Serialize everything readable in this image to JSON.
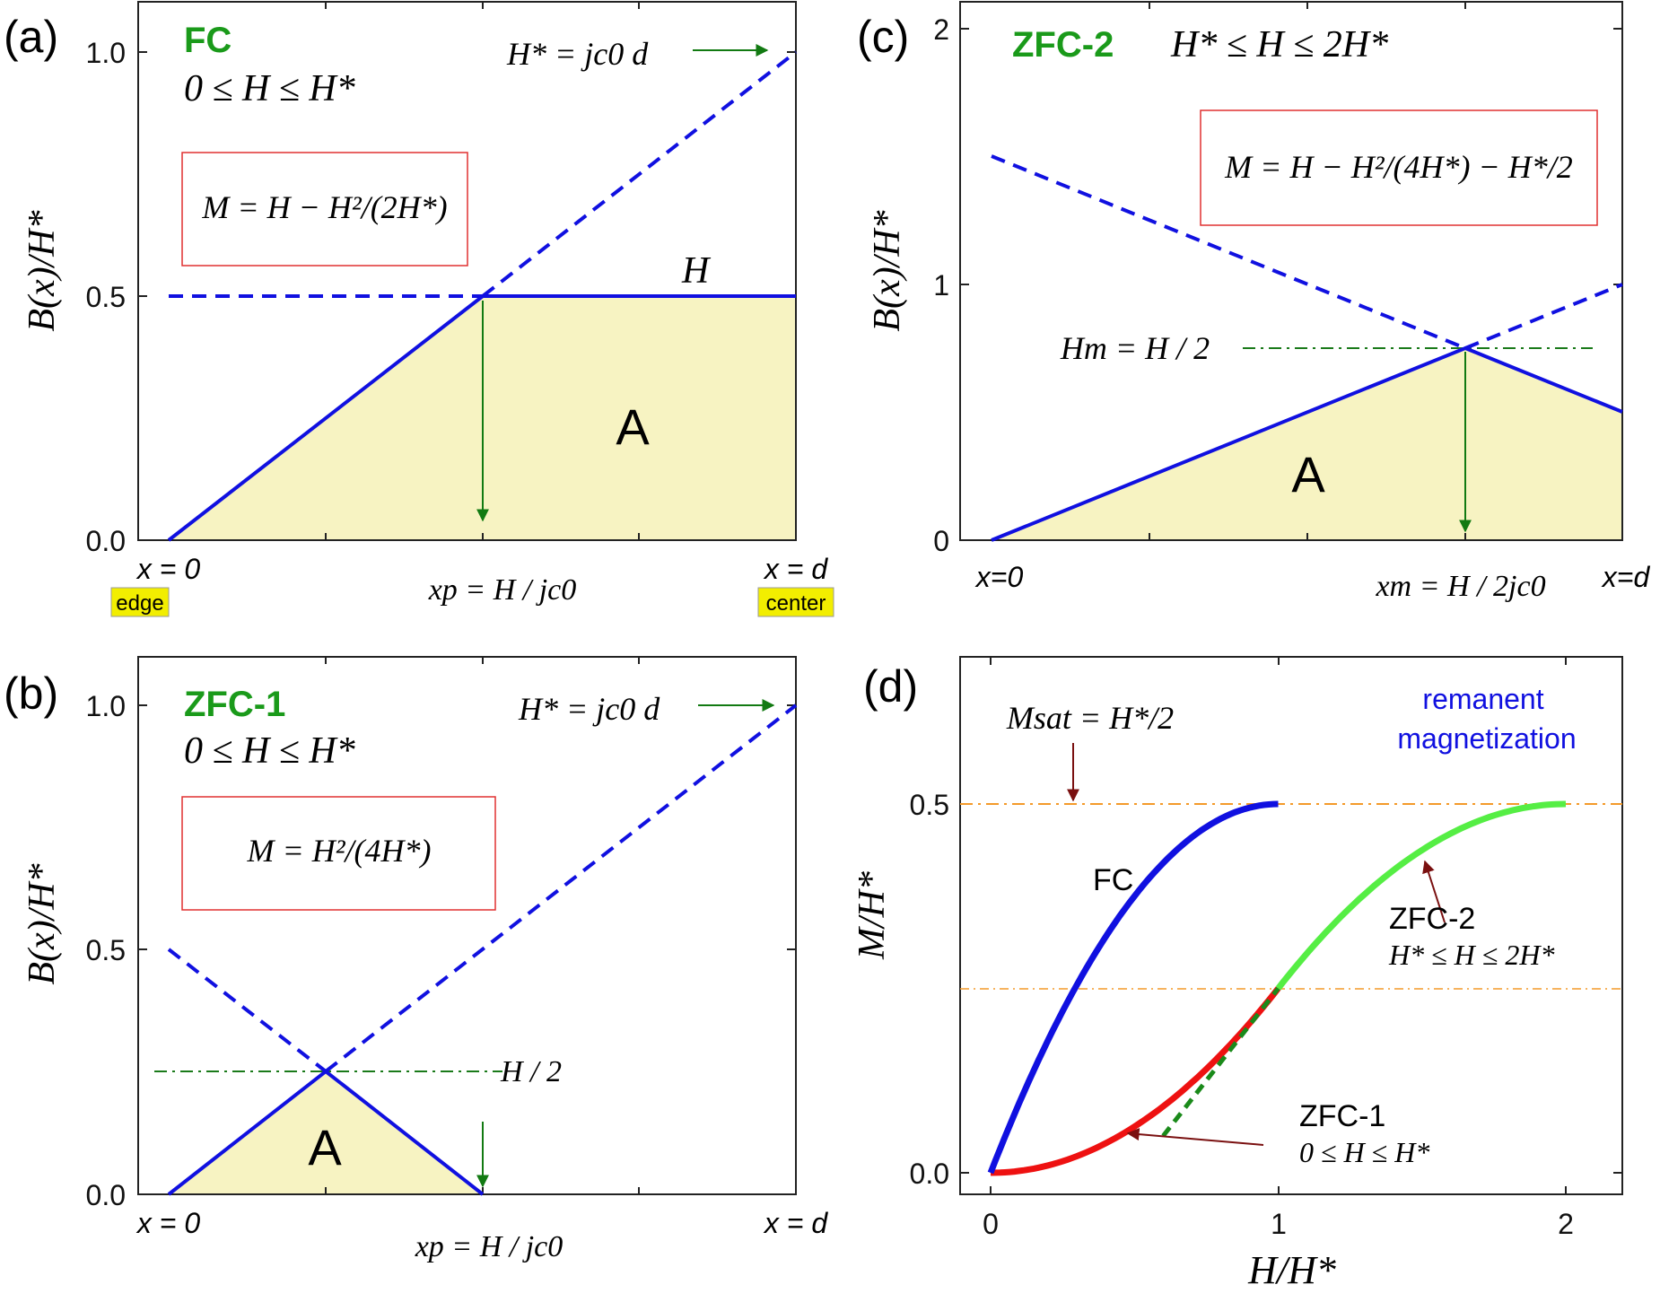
{
  "panels": {
    "a": {
      "label": "(a)",
      "title": "FC",
      "range_label": "0 ≤ H ≤ H*",
      "formula": "M = H − H²/(2H*)",
      "hstar_label": "H* = jc0 d",
      "h_label": "H",
      "area_label": "A",
      "xp_label": "xp = H / jc0",
      "x0_label": "x = 0",
      "xd_label": "x = d",
      "edge_badge": "edge",
      "center_badge": "center",
      "ylabel": "B(x)/H*",
      "yticks": [
        "0.0",
        "0.5",
        "1.0"
      ]
    },
    "b": {
      "label": "(b)",
      "title": "ZFC-1",
      "range_label": "0 ≤ H ≤ H*",
      "formula": "M = H²/(4H*)",
      "hstar_label": "H* = jc0 d",
      "hhalf_label": "H / 2",
      "area_label": "A",
      "xp_label": "xp = H / jc0",
      "x0_label": "x = 0",
      "xd_label": "x = d",
      "ylabel": "B(x)/H*",
      "yticks": [
        "0.0",
        "0.5",
        "1.0"
      ]
    },
    "c": {
      "label": "(c)",
      "title": "ZFC-2",
      "range_label": "H* ≤ H ≤ 2H*",
      "formula": "M = H − H²/(4H*) − H*/2",
      "hm_label": "Hm = H / 2",
      "area_label": "A",
      "xm_label": "xm = H / 2jc0",
      "x0_label": "x=0",
      "xd_label": "x=d",
      "ylabel": "B(x)/H*",
      "yticks": [
        "0",
        "1",
        "2"
      ]
    },
    "d": {
      "label": "(d)",
      "msat_label": "Msat = H*/2",
      "remanent_label_1": "remanent",
      "remanent_label_2": "magnetization",
      "fc_label": "FC",
      "zfc2_label": "ZFC-2",
      "zfc2_range": "H* ≤ H ≤ 2H*",
      "zfc1_label": "ZFC-1",
      "zfc1_range": "0 ≤ H ≤ H*",
      "xlabel": "H/H*",
      "ylabel": "M/H*",
      "xticks": [
        "0",
        "1",
        "2"
      ],
      "yticks": [
        "0.0",
        "0.5"
      ]
    }
  },
  "colors": {
    "blue": "#1010e0",
    "green_text": "#1a9a1a",
    "arrow_green": "#127a12",
    "fill": "#f7f3c2",
    "red": "#ee1111",
    "light_green": "#55ee44",
    "orange": "#f39a2a",
    "dark_red": "#7a1010",
    "box_red": "#e03030",
    "badge": "#f2ee00"
  },
  "chart_data": [
    {
      "type": "line",
      "panel": "a",
      "x_domain": [
        0,
        1
      ],
      "ylim": [
        0,
        1.0
      ],
      "series": [
        {
          "style": "solid",
          "x": [
            0,
            0.5,
            1.0
          ],
          "y": [
            0,
            0.5,
            0.5
          ]
        },
        {
          "style": "dashed",
          "x": [
            0,
            0.5
          ],
          "y": [
            0.5,
            0.5
          ]
        },
        {
          "style": "dashed",
          "x": [
            0.5,
            1.0
          ],
          "y": [
            0.5,
            1.0
          ]
        }
      ]
    },
    {
      "type": "line",
      "panel": "b",
      "x_domain": [
        0,
        1
      ],
      "ylim": [
        0,
        1.0
      ],
      "series": [
        {
          "style": "solid",
          "x": [
            0,
            0.25,
            0.5
          ],
          "y": [
            0,
            0.25,
            0
          ]
        },
        {
          "style": "dashed",
          "x": [
            0,
            0.25
          ],
          "y": [
            0.5,
            0.25
          ]
        },
        {
          "style": "dashed",
          "x": [
            0.25,
            1.0
          ],
          "y": [
            0.25,
            1.0
          ]
        }
      ],
      "hline": 0.25
    },
    {
      "type": "line",
      "panel": "c",
      "x_domain": [
        0,
        1
      ],
      "ylim": [
        0,
        2
      ],
      "series": [
        {
          "style": "solid",
          "x": [
            0,
            0.75,
            1.0
          ],
          "y": [
            0,
            0.75,
            0.5
          ]
        },
        {
          "style": "dashed",
          "x": [
            0,
            0.75
          ],
          "y": [
            1.5,
            0.75
          ]
        },
        {
          "style": "dashed",
          "x": [
            0.75,
            1.0
          ],
          "y": [
            0.75,
            1.0
          ]
        }
      ],
      "hline": 0.75
    },
    {
      "type": "line",
      "panel": "d",
      "xlabel": "H/H*",
      "ylabel": "M/H*",
      "xlim": [
        -0.1,
        2.2
      ],
      "ylim": [
        -0.03,
        0.7
      ],
      "hlines": [
        0.5,
        0.25
      ],
      "series": [
        {
          "name": "FC",
          "formula": "M = H − H²/2",
          "x_range": [
            0,
            1
          ]
        },
        {
          "name": "ZFC-1",
          "formula": "M = H²/4",
          "x_range": [
            0,
            1
          ]
        },
        {
          "name": "ZFC-2",
          "formula": "M = H − H²/4 − 1/2",
          "x_range": [
            1,
            2
          ]
        },
        {
          "style": "dashed",
          "formula": "M = (H − 0.5)/2",
          "x_range": [
            0.6,
            1.0
          ]
        }
      ]
    }
  ]
}
